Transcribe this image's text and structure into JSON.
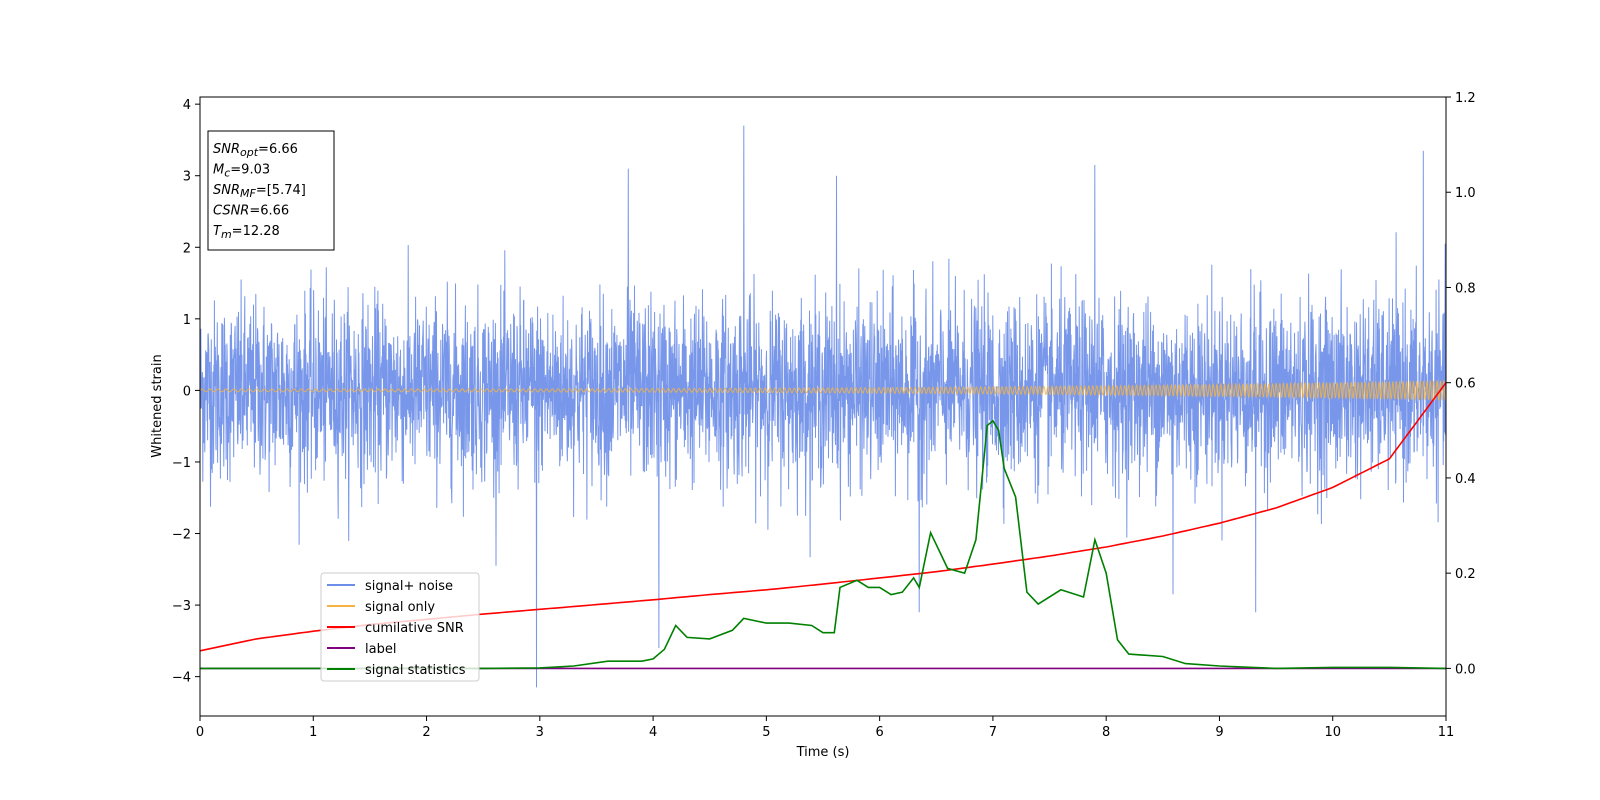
{
  "chart_data": {
    "type": "line",
    "xlabel": "Time (s)",
    "ylabel": "Whitened strain",
    "xlim": [
      0,
      11
    ],
    "ylim": [
      -4.55,
      4.1
    ],
    "y2lim": [
      -0.1,
      1.2
    ],
    "x_ticks": [
      0,
      1,
      2,
      3,
      4,
      5,
      6,
      7,
      8,
      9,
      10,
      11
    ],
    "y_ticks": [
      -4,
      -3,
      -2,
      -1,
      0,
      1,
      2,
      3,
      4
    ],
    "y2_ticks": [
      0.0,
      0.2,
      0.4,
      0.6,
      0.8,
      1.0,
      1.2
    ],
    "y_tick_labels": [
      "−4",
      "−3",
      "−2",
      "−1",
      "0",
      "1",
      "2",
      "3",
      "4"
    ],
    "y2_tick_labels": [
      "0.0",
      "0.2",
      "0.4",
      "0.6",
      "0.8",
      "1.0",
      "1.2"
    ],
    "legend_position": "lower-left",
    "series": [
      {
        "name": "signal+ noise",
        "axis": "left",
        "color": "#6d8ee8",
        "kind": "noise",
        "typical_range": [
          -1.6,
          1.6
        ],
        "spikes": [
          {
            "x": 4.8,
            "y": 3.7
          },
          {
            "x": 5.62,
            "y": 3.0
          },
          {
            "x": 3.78,
            "y": 3.1
          },
          {
            "x": 7.9,
            "y": 3.15
          },
          {
            "x": 10.8,
            "y": 3.35
          },
          {
            "x": 2.97,
            "y": -4.15
          },
          {
            "x": 4.05,
            "y": -3.6
          },
          {
            "x": 6.35,
            "y": -3.1
          },
          {
            "x": 9.32,
            "y": -3.1
          },
          {
            "x": 8.59,
            "y": -2.85
          }
        ]
      },
      {
        "name": "signal only",
        "axis": "left",
        "color": "#f5b342",
        "kind": "chirp",
        "amplitude_start": 0.02,
        "amplitude_end": 0.14
      },
      {
        "name": "cumilative SNR",
        "axis": "right",
        "color": "#ff0000",
        "x": [
          0,
          0.5,
          1,
          1.5,
          2,
          2.5,
          3,
          3.5,
          4,
          4.5,
          5,
          5.5,
          6,
          6.5,
          7,
          7.5,
          8,
          8.5,
          9,
          9.5,
          10,
          10.5,
          11
        ],
        "values": [
          0.037,
          0.062,
          0.078,
          0.092,
          0.103,
          0.114,
          0.124,
          0.134,
          0.144,
          0.155,
          0.165,
          0.177,
          0.19,
          0.203,
          0.219,
          0.236,
          0.255,
          0.278,
          0.305,
          0.337,
          0.38,
          0.44,
          0.6
        ]
      },
      {
        "name": "label",
        "axis": "right",
        "color": "#800080",
        "x": [
          0,
          11
        ],
        "values": [
          0,
          0
        ]
      },
      {
        "name": "signal statistics",
        "axis": "right",
        "color": "#008000",
        "x": [
          0,
          0.5,
          1,
          1.5,
          2,
          2.5,
          3,
          3.3,
          3.6,
          3.9,
          4.0,
          4.1,
          4.2,
          4.3,
          4.5,
          4.7,
          4.8,
          5.0,
          5.2,
          5.4,
          5.5,
          5.6,
          5.65,
          5.8,
          5.9,
          6.0,
          6.1,
          6.2,
          6.3,
          6.35,
          6.45,
          6.6,
          6.75,
          6.85,
          6.95,
          7.0,
          7.05,
          7.1,
          7.2,
          7.3,
          7.4,
          7.6,
          7.8,
          7.9,
          8.0,
          8.1,
          8.2,
          8.5,
          8.7,
          9.0,
          9.5,
          10.0,
          10.5,
          11.0
        ],
        "values": [
          0.0,
          0.0,
          0.0,
          0.0,
          0.0,
          0.0,
          0.001,
          0.005,
          0.015,
          0.015,
          0.02,
          0.04,
          0.09,
          0.065,
          0.062,
          0.08,
          0.105,
          0.095,
          0.095,
          0.09,
          0.075,
          0.075,
          0.17,
          0.185,
          0.17,
          0.17,
          0.155,
          0.16,
          0.19,
          0.17,
          0.285,
          0.21,
          0.2,
          0.27,
          0.51,
          0.52,
          0.5,
          0.42,
          0.36,
          0.16,
          0.135,
          0.165,
          0.15,
          0.27,
          0.2,
          0.06,
          0.03,
          0.025,
          0.01,
          0.005,
          0.0,
          0.002,
          0.002,
          0.0
        ]
      }
    ],
    "annotation": {
      "lines": [
        {
          "base": "SNR",
          "sub": "opt",
          "value": "=6.66"
        },
        {
          "base": "M",
          "sub": "c",
          "value": "=9.03"
        },
        {
          "base": "SNR",
          "sub": "MF",
          "value": "=[5.74]"
        },
        {
          "base": "CSNR",
          "sub": "",
          "value": "=6.66"
        },
        {
          "base": "T",
          "sub": "m",
          "value": "=12.28"
        }
      ]
    }
  }
}
